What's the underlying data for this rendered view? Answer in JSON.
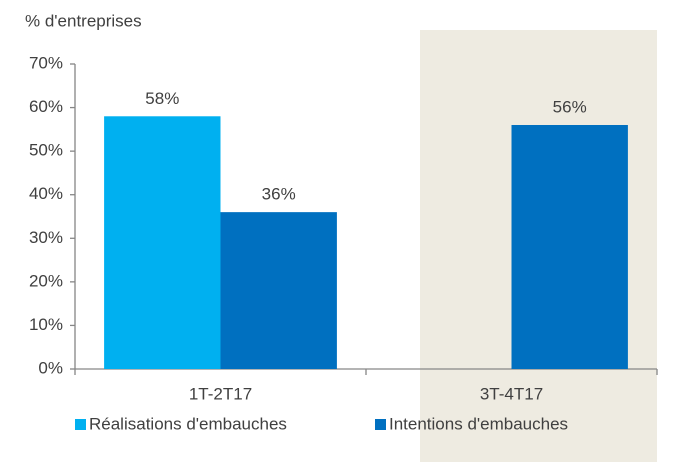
{
  "chart_data": {
    "type": "bar",
    "y_label": "% d'entreprises",
    "categories": [
      "1T-2T17",
      "3T-4T17"
    ],
    "series": [
      {
        "name": "Réalisations d'embauches",
        "color": "#00b0f0",
        "values": [
          58,
          null
        ],
        "value_labels": [
          "58%",
          null
        ]
      },
      {
        "name": "Intentions d'embauches",
        "color": "#0070c0",
        "values": [
          36,
          56
        ],
        "value_labels": [
          "36%",
          "56%"
        ]
      }
    ],
    "ylim": [
      0,
      70
    ],
    "yticks": [
      {
        "value": 0,
        "label": "0%"
      },
      {
        "value": 10,
        "label": "10%"
      },
      {
        "value": 20,
        "label": "20%"
      },
      {
        "value": 30,
        "label": "30%"
      },
      {
        "value": 40,
        "label": "40%"
      },
      {
        "value": 50,
        "label": "50%"
      },
      {
        "value": 60,
        "label": "60%"
      },
      {
        "value": 70,
        "label": "70%"
      }
    ],
    "grid": false,
    "legend": "bottom",
    "shade": {
      "category": 1,
      "color": "#eeebe1"
    }
  }
}
